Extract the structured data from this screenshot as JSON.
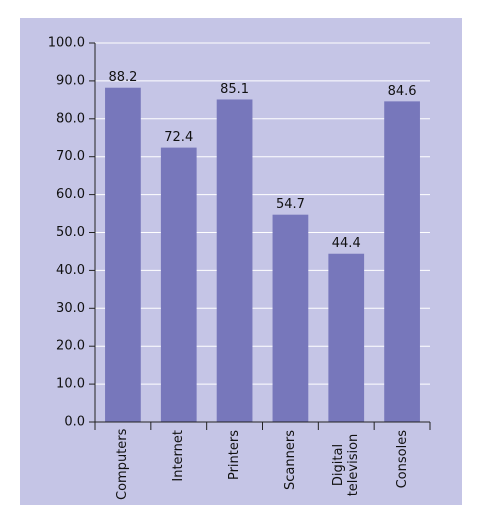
{
  "chart_data": {
    "type": "bar",
    "categories": [
      "Computers",
      "Internet",
      "Printers",
      "Scanners",
      "Digital television",
      "Consoles"
    ],
    "values": [
      88.2,
      72.4,
      85.1,
      54.7,
      44.4,
      84.6
    ],
    "color": "#7777bb",
    "ylim": [
      0,
      100
    ],
    "yticks": [
      {
        "value": 0,
        "label": "0.0"
      },
      {
        "value": 10,
        "label": "10.0"
      },
      {
        "value": 20,
        "label": "20.0"
      },
      {
        "value": 30,
        "label": "30.0"
      },
      {
        "value": 40,
        "label": "40.0"
      },
      {
        "value": 50,
        "label": "50.0"
      },
      {
        "value": 60,
        "label": "60.0"
      },
      {
        "value": 70,
        "label": "70.0"
      },
      {
        "value": 80,
        "label": "80.0"
      },
      {
        "value": 90,
        "label": "90.0"
      },
      {
        "value": 100,
        "label": "100.0"
      }
    ],
    "grid": true
  }
}
